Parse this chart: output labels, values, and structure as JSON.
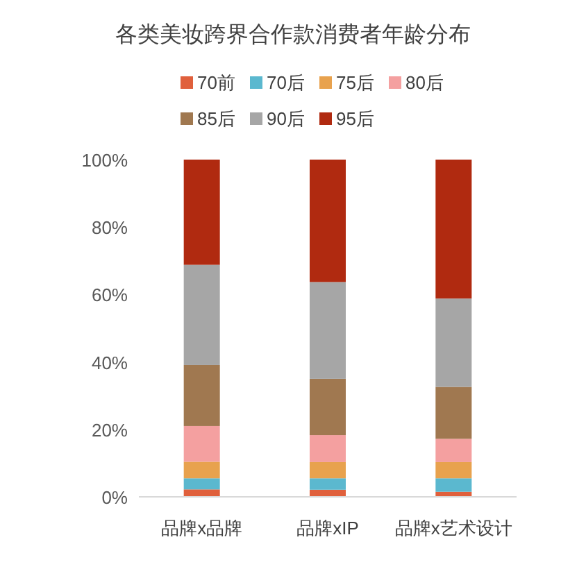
{
  "chart_data": {
    "type": "bar",
    "title": "各类美妆跨界合作款消费者年龄分布",
    "stacked": true,
    "categories": [
      "品牌x品牌",
      "品牌xIP",
      "品牌x艺术设计"
    ],
    "series": [
      {
        "name": "70前",
        "color": "#e0603c",
        "values": [
          2.2,
          2.1,
          1.5
        ]
      },
      {
        "name": "70后",
        "color": "#5bb8cf",
        "values": [
          3.3,
          3.4,
          4.0
        ]
      },
      {
        "name": "75后",
        "color": "#e8a24e",
        "values": [
          4.9,
          4.8,
          4.8
        ]
      },
      {
        "name": "80后",
        "color": "#f4a0a0",
        "values": [
          10.6,
          8.0,
          6.9
        ]
      },
      {
        "name": "85后",
        "color": "#a07850",
        "values": [
          18.1,
          16.7,
          15.4
        ]
      },
      {
        "name": "90后",
        "color": "#a6a6a6",
        "values": [
          29.7,
          28.7,
          26.2
        ]
      },
      {
        "name": "95后",
        "color": "#b02a10",
        "values": [
          31.2,
          36.3,
          41.2
        ]
      }
    ],
    "ylim": [
      0,
      100
    ],
    "yticks": [
      {
        "value": 0,
        "label": "0%"
      },
      {
        "value": 20,
        "label": "20%"
      },
      {
        "value": 40,
        "label": "40%"
      },
      {
        "value": 60,
        "label": "60%"
      },
      {
        "value": 80,
        "label": "80%"
      },
      {
        "value": 100,
        "label": "100%"
      }
    ],
    "grid": false,
    "legend": "top"
  }
}
